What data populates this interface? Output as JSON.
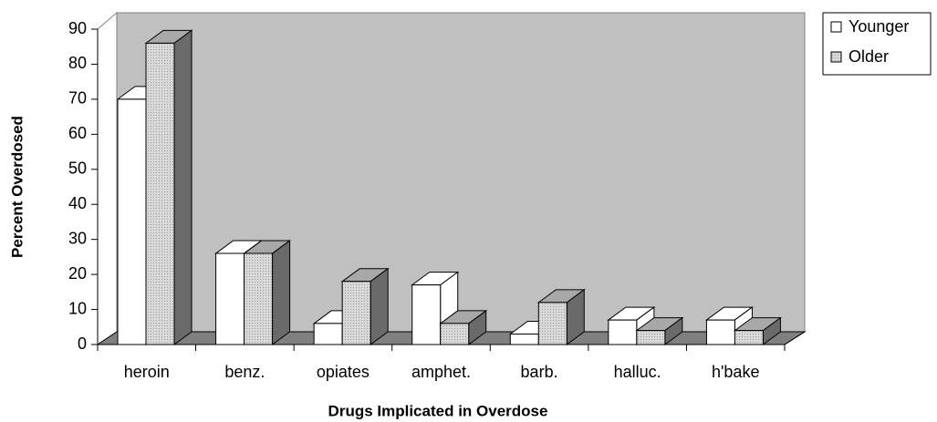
{
  "chart_data": {
    "type": "bar3d",
    "y_label": "Percent Overdosed",
    "x_label": "Drugs Implicated in Overdose",
    "categories": [
      "heroin",
      "benz.",
      "opiates",
      "amphet.",
      "barb.",
      "halluc.",
      "h'bake"
    ],
    "series": [
      {
        "name": "Younger",
        "color": "#ffffff",
        "values": [
          70,
          26,
          6,
          17,
          3,
          7,
          7
        ]
      },
      {
        "name": "Older",
        "color": "#c8c8c8",
        "values": [
          86,
          26,
          18,
          6,
          12,
          4,
          4
        ]
      }
    ],
    "ylim": [
      0,
      90
    ],
    "yticks": [
      0,
      10,
      20,
      30,
      40,
      50,
      60,
      70,
      80,
      90
    ],
    "legend": "top-right"
  }
}
